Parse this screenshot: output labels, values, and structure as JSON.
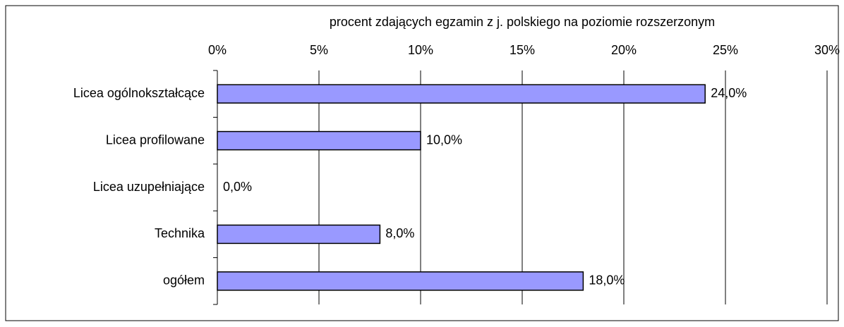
{
  "chart_data": {
    "type": "barh",
    "xlabel": "procent zdających egzamin z j. polskiego na poziomie rozszerzonym",
    "categories": [
      "Licea ogólnokształcące",
      "Licea profilowane",
      "Licea uzupełniające",
      "Technika",
      "ogółem"
    ],
    "values": [
      24,
      10,
      0,
      8,
      18
    ],
    "value_labels": [
      "24,0%",
      "10,0%",
      "0,0%",
      "8,0%",
      "18,0%"
    ],
    "color": "#9999ff",
    "xlim": [
      0,
      30
    ],
    "xticks": [
      {
        "value": 0,
        "label": "0%"
      },
      {
        "value": 5,
        "label": "5%"
      },
      {
        "value": 10,
        "label": "10%"
      },
      {
        "value": 15,
        "label": "15%"
      },
      {
        "value": 20,
        "label": "20%"
      },
      {
        "value": 25,
        "label": "25%"
      },
      {
        "value": 30,
        "label": "30%"
      }
    ],
    "grid": true
  }
}
